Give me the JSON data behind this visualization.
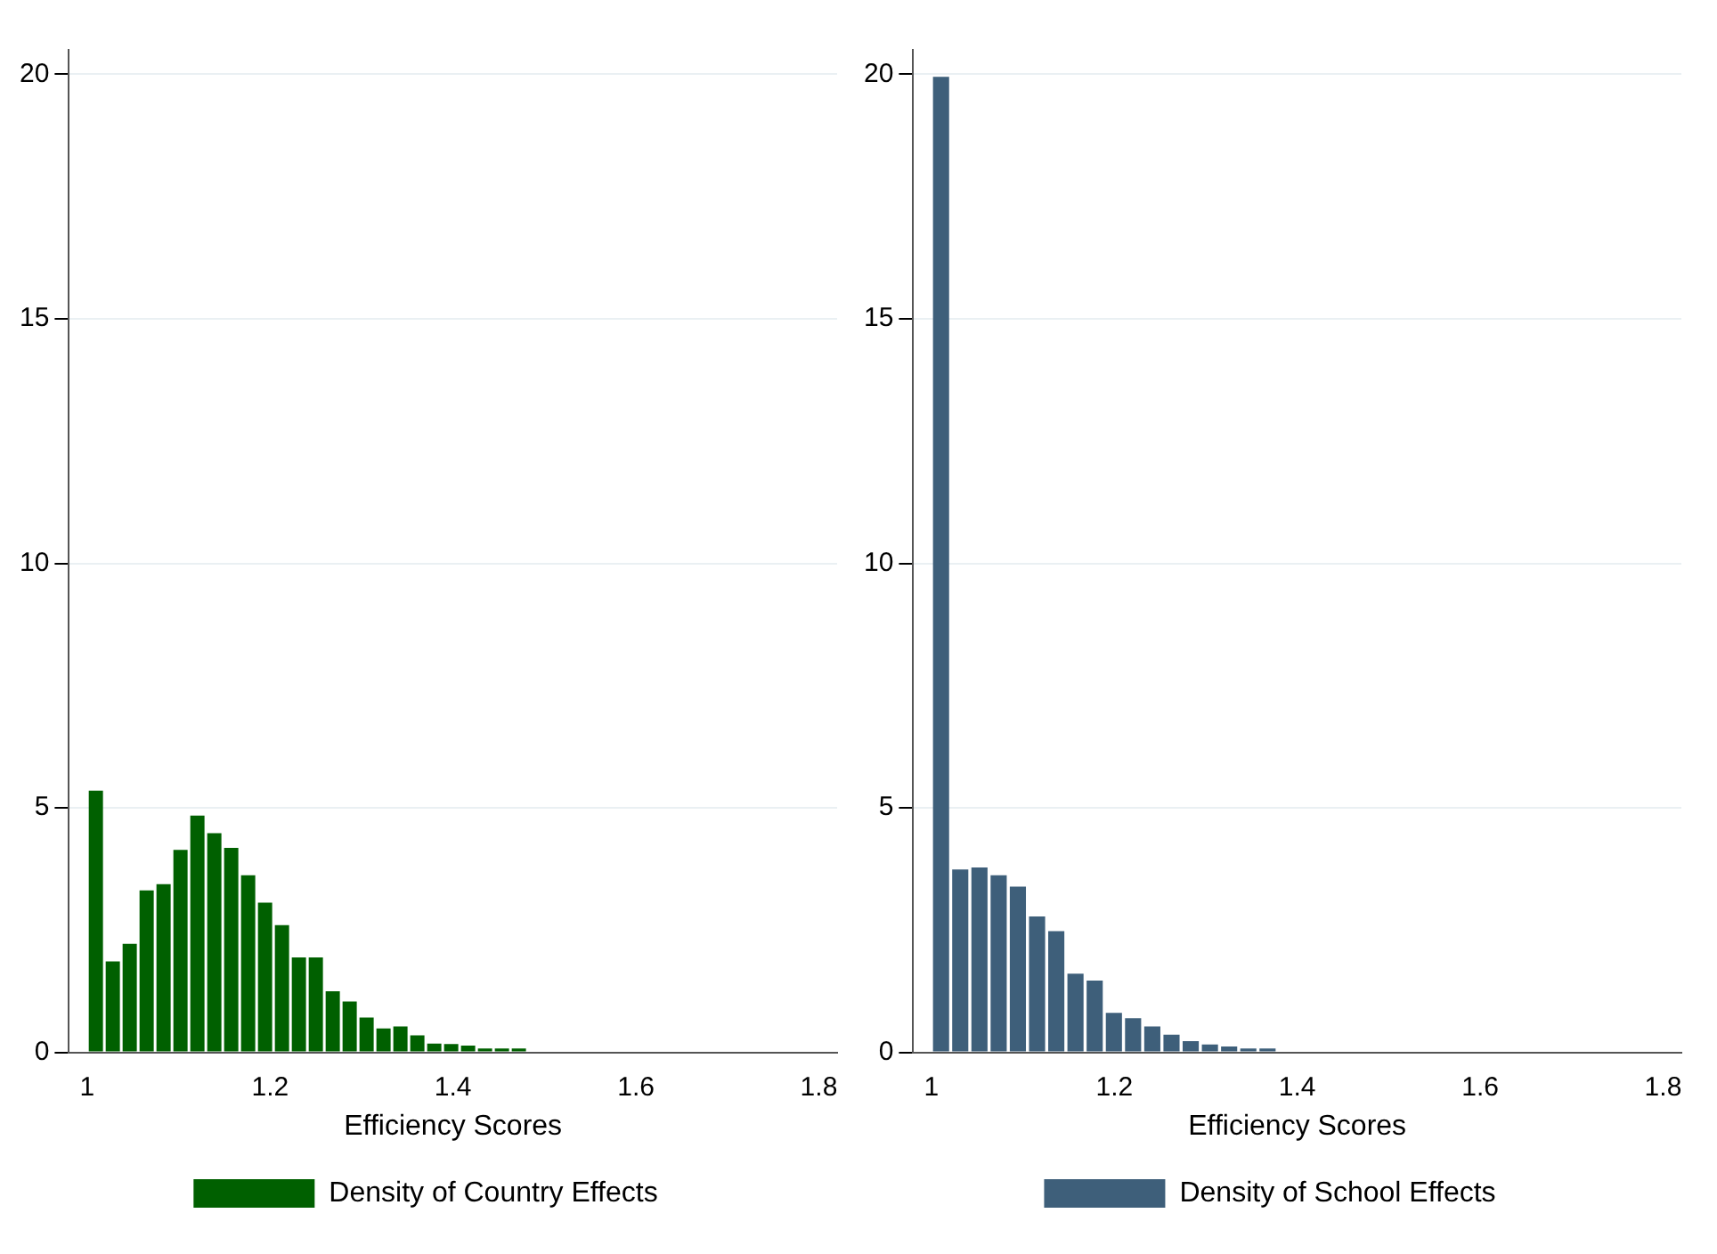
{
  "chart_data": [
    {
      "type": "histogram",
      "xlabel": "Efficiency Scores",
      "bins": [
        1,
        1.019,
        1.037,
        1.056,
        1.074,
        1.093,
        1.111,
        1.13,
        1.148,
        1.167,
        1.185,
        1.204,
        1.222,
        1.241,
        1.259,
        1.278,
        1.296,
        1.315,
        1.333,
        1.352,
        1.37,
        1.389,
        1.407,
        1.426,
        1.444,
        1.463,
        1.481
      ],
      "series": [
        {
          "name": "Density of Country Effects",
          "color": "#006000",
          "values": [
            5.35,
            1.86,
            2.22,
            3.31,
            3.44,
            4.14,
            4.84,
            4.48,
            4.18,
            3.62,
            3.06,
            2.6,
            1.94,
            1.94,
            1.25,
            1.04,
            0.71,
            0.49,
            0.53,
            0.35,
            0.18,
            0.17,
            0.14,
            0.08,
            0.08,
            0.08
          ]
        }
      ],
      "xlim": [
        0.98,
        1.82
      ],
      "xticks": [
        1,
        1.2,
        1.4,
        1.6,
        1.8
      ],
      "ylim": [
        0,
        20.5
      ],
      "yticks": [
        0,
        5,
        10,
        15,
        20
      ],
      "grid": "y",
      "legend": "bottom"
    },
    {
      "type": "histogram",
      "xlabel": "Efficiency Scores",
      "bins": [
        1,
        1.021,
        1.042,
        1.063,
        1.084,
        1.105,
        1.126,
        1.147,
        1.168,
        1.189,
        1.21,
        1.231,
        1.252,
        1.273,
        1.294,
        1.315,
        1.336,
        1.357,
        1.378
      ],
      "series": [
        {
          "name": "Density of School Effects",
          "color": "#3e5f7a",
          "values": [
            19.95,
            3.74,
            3.78,
            3.62,
            3.39,
            2.78,
            2.48,
            1.61,
            1.47,
            0.81,
            0.7,
            0.53,
            0.36,
            0.23,
            0.16,
            0.12,
            0.08,
            0.08
          ]
        }
      ],
      "xlim": [
        0.98,
        1.82
      ],
      "xticks": [
        1,
        1.2,
        1.4,
        1.6,
        1.8
      ],
      "ylim": [
        0,
        20.5
      ],
      "yticks": [
        0,
        5,
        10,
        15,
        20
      ],
      "grid": "y",
      "legend": "bottom"
    }
  ]
}
